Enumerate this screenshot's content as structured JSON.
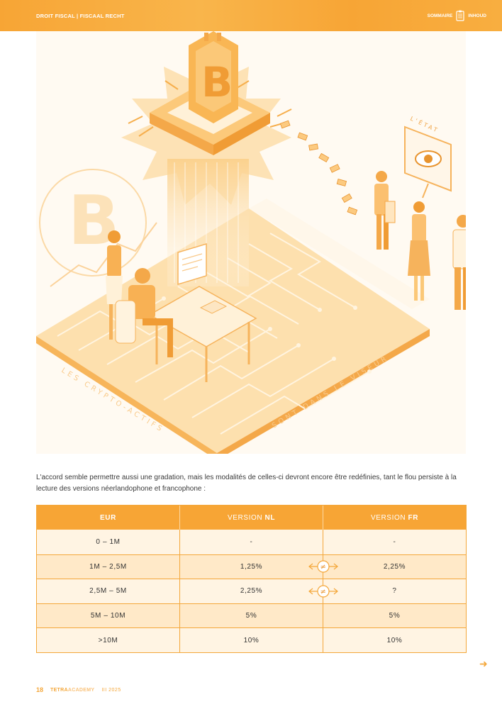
{
  "header": {
    "breadcrumb": "DROIT FISCAL | FISCAAL RECHT",
    "summary_fr": "SOMMAIRE",
    "summary_nl": "INHOUD"
  },
  "illustration": {
    "label_state": "L'ÉTAT",
    "caption_left": "LES CRYPTO-ACTIFS",
    "caption_right": "SONT DANS LE VISEUR"
  },
  "paragraph": "L'accord semble permettre aussi une gradation, mais les modalités de celles-ci devront encore être redéfinies, tant le flou persiste à la lecture des versions néerlandophone et francophone :",
  "table": {
    "head": {
      "col1": "EUR",
      "col2_prefix": "VERSION ",
      "col2_bold": "NL",
      "col3_prefix": "VERSION ",
      "col3_bold": "FR"
    },
    "rows": [
      {
        "eur": "0 – 1M",
        "nl": "-",
        "fr": "-",
        "differs": false
      },
      {
        "eur": "1M – 2,5M",
        "nl": "1,25%",
        "fr": "2,25%",
        "differs": true
      },
      {
        "eur": "2,5M – 5M",
        "nl": "2,25%",
        "fr": "?",
        "differs": true
      },
      {
        "eur": "5M – 10M",
        "nl": "5%",
        "fr": "5%",
        "differs": false
      },
      {
        "eur": ">10M",
        "nl": "10%",
        "fr": "10%",
        "differs": false
      }
    ],
    "neq_symbol": "≠"
  },
  "footer": {
    "page_number": "18",
    "logo_part1": "TETRA",
    "logo_part2": "ACADEMY",
    "date": "III 2025"
  },
  "colors": {
    "accent": "#f7a535",
    "accent_light": "#ffe9c8"
  },
  "icons": {
    "summary": "clipboard-icon",
    "next": "arrow-right-icon",
    "neq": "not-equal-icon"
  }
}
